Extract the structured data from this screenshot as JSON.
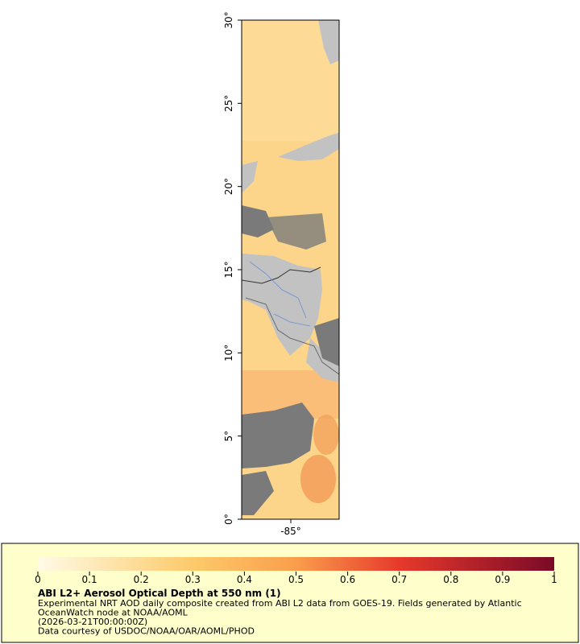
{
  "map": {
    "ylim": [
      0,
      30
    ],
    "yticks": [
      {
        "value": 0,
        "label": "0°"
      },
      {
        "value": 5,
        "label": "5°"
      },
      {
        "value": 10,
        "label": "10°"
      },
      {
        "value": 15,
        "label": "15°"
      },
      {
        "value": 20,
        "label": "20°"
      },
      {
        "value": 25,
        "label": "25°"
      },
      {
        "value": 30,
        "label": "30°"
      }
    ],
    "xlim": [
      -87.95,
      -82.1
    ],
    "xticks": [
      {
        "value": -85,
        "label": "-85°"
      }
    ]
  },
  "legend": {
    "range": [
      0,
      1
    ],
    "ticks": [
      0,
      0.1,
      0.2,
      0.3,
      0.4,
      0.5,
      0.6,
      0.7,
      0.8,
      0.9,
      1
    ],
    "title": "ABI L2+ Aerosol Optical Depth at 550 nm (1)",
    "lines": [
      "Experimental NRT AOD daily composite created from ABI L2 data from GOES-19. Fields generated by Atlantic",
      "OceanWatch node at NOAA/AOML",
      "(2026-03-21T00:00:00Z)",
      "Data courtesy of USDOC/NOAA/OAR/AOML/PHOD"
    ]
  }
}
